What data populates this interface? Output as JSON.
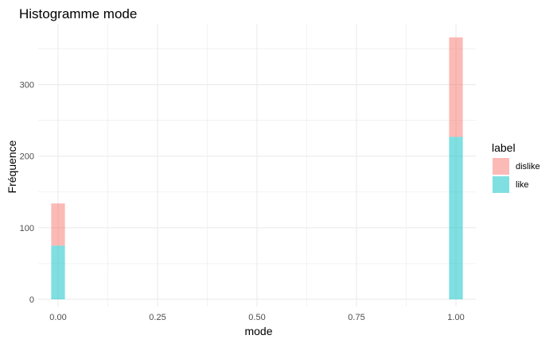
{
  "chart_data": {
    "type": "bar",
    "subtype": "stacked-histogram",
    "title": "Histogramme mode",
    "xlabel": "mode",
    "ylabel": "Fréquence",
    "xlim": [
      -0.05,
      1.05
    ],
    "ylim": [
      -10,
      385
    ],
    "x_ticks": [
      0.0,
      0.25,
      0.5,
      0.75,
      1.0
    ],
    "x_tick_labels": [
      "0.00",
      "0.25",
      "0.50",
      "0.75",
      "1.00"
    ],
    "x_minor_ticks": [
      0.125,
      0.375,
      0.625,
      0.875
    ],
    "y_ticks": [
      0,
      100,
      200,
      300
    ],
    "y_tick_labels": [
      "0",
      "100",
      "200",
      "300"
    ],
    "y_minor_ticks": [
      50,
      150,
      250,
      350
    ],
    "bin_width": 0.0345,
    "bins": [
      0.0,
      1.0
    ],
    "series": [
      {
        "name": "like",
        "color": "#00BFC4",
        "values": [
          75,
          227
        ]
      },
      {
        "name": "dislike",
        "color": "#F8766D",
        "values": [
          59,
          139
        ]
      }
    ],
    "legend": {
      "title": "label",
      "position": "right",
      "entries": [
        {
          "label": "dislike",
          "color": "#F8766D"
        },
        {
          "label": "like",
          "color": "#00BFC4"
        }
      ]
    },
    "grid": true,
    "bar_opacity": 0.5,
    "gridline_color": "#EBEBEB"
  }
}
